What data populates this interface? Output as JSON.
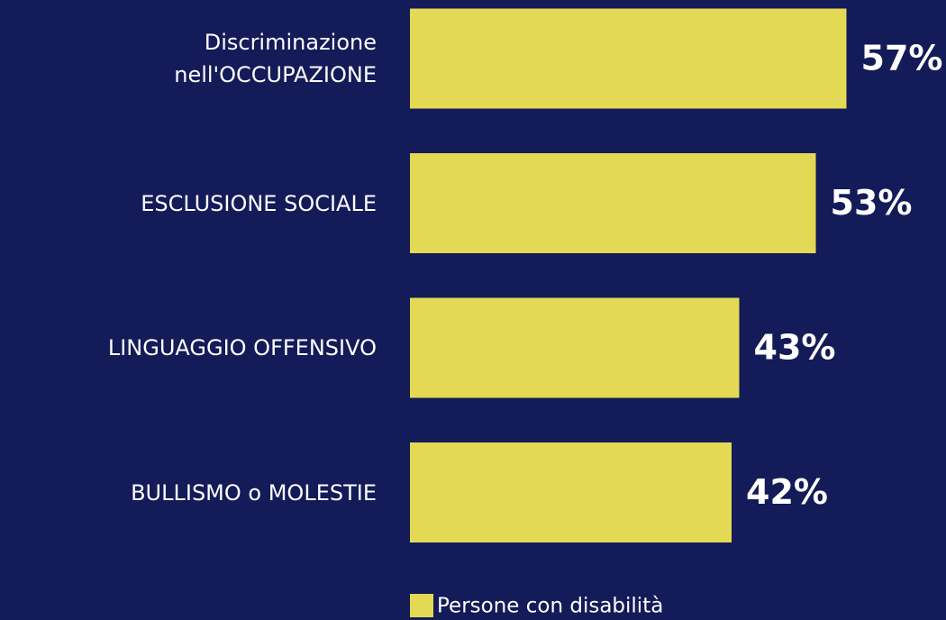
{
  "chart_data": {
    "type": "bar",
    "orientation": "horizontal",
    "categories": [
      "Discriminazione\nnell'OCCUPAZIONE",
      "ESCLUSIONE SOCIALE",
      "LINGUAGGIO OFFENSIVO",
      "BULLISMO o MOLESTIE"
    ],
    "series": [
      {
        "name": "Persone con disabilità",
        "color": "#e3d955",
        "values": [
          57,
          53,
          43,
          42
        ],
        "value_labels": [
          "57%",
          "53%",
          "43%",
          "42%"
        ]
      }
    ],
    "xlim": [
      0,
      70
    ],
    "legend": "bottom"
  }
}
